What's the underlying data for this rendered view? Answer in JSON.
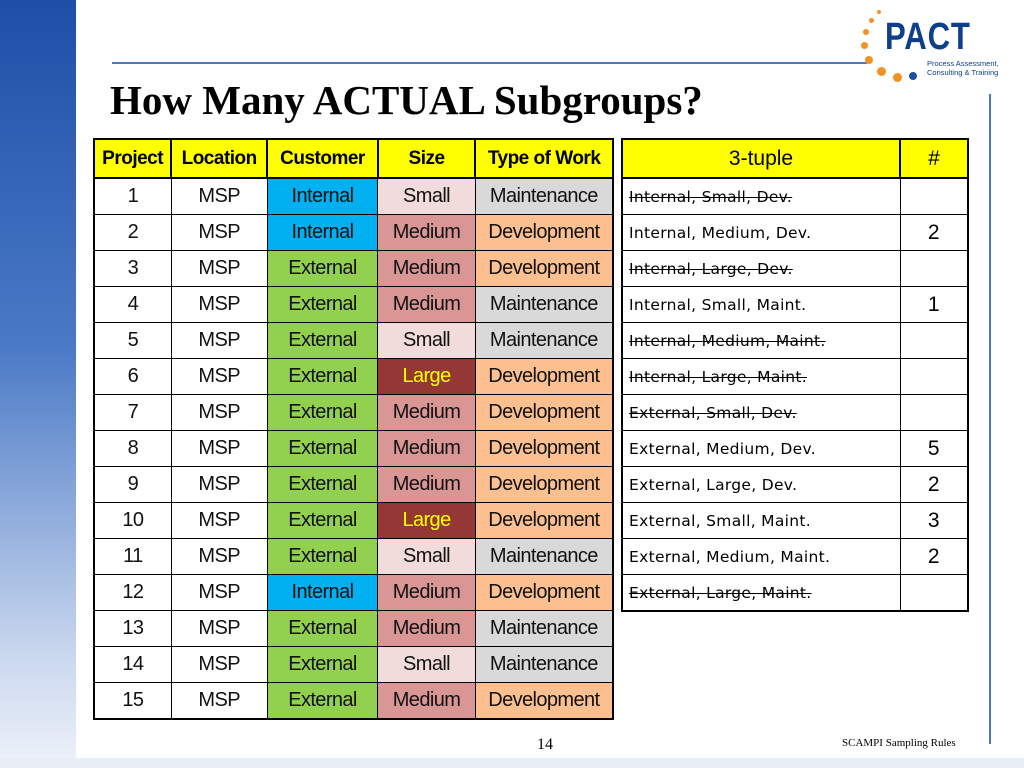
{
  "title": "How Many ACTUAL Subgroups?",
  "logo": {
    "word": "PACT",
    "tagline": [
      "Process Assessment,",
      "Consulting & Training"
    ]
  },
  "colors": {
    "header_yellow": "#ffff00",
    "internal": "#00b0f0",
    "external": "#92d050",
    "small": "#f2dcdb",
    "medium": "#da9694",
    "large": "#953735",
    "maintenance": "#d9d9d9",
    "development": "#fcc090",
    "accent_blue": "#4b77c2"
  },
  "projects_table": {
    "headers": [
      "Project",
      "Location",
      "Customer",
      "Size",
      "Type of Work"
    ],
    "rows": [
      {
        "project": "1",
        "location": "MSP",
        "customer": "Internal",
        "size": "Small",
        "work": "Maintenance"
      },
      {
        "project": "2",
        "location": "MSP",
        "customer": "Internal",
        "size": "Medium",
        "work": "Development"
      },
      {
        "project": "3",
        "location": "MSP",
        "customer": "External",
        "size": "Medium",
        "work": "Development"
      },
      {
        "project": "4",
        "location": "MSP",
        "customer": "External",
        "size": "Medium",
        "work": "Maintenance"
      },
      {
        "project": "5",
        "location": "MSP",
        "customer": "External",
        "size": "Small",
        "work": "Maintenance"
      },
      {
        "project": "6",
        "location": "MSP",
        "customer": "External",
        "size": "Large",
        "work": "Development"
      },
      {
        "project": "7",
        "location": "MSP",
        "customer": "External",
        "size": "Medium",
        "work": "Development"
      },
      {
        "project": "8",
        "location": "MSP",
        "customer": "External",
        "size": "Medium",
        "work": "Development"
      },
      {
        "project": "9",
        "location": "MSP",
        "customer": "External",
        "size": "Medium",
        "work": "Development"
      },
      {
        "project": "10",
        "location": "MSP",
        "customer": "External",
        "size": "Large",
        "work": "Development"
      },
      {
        "project": "11",
        "location": "MSP",
        "customer": "External",
        "size": "Small",
        "work": "Maintenance"
      },
      {
        "project": "12",
        "location": "MSP",
        "customer": "Internal",
        "size": "Medium",
        "work": "Development"
      },
      {
        "project": "13",
        "location": "MSP",
        "customer": "External",
        "size": "Medium",
        "work": "Maintenance"
      },
      {
        "project": "14",
        "location": "MSP",
        "customer": "External",
        "size": "Small",
        "work": "Maintenance"
      },
      {
        "project": "15",
        "location": "MSP",
        "customer": "External",
        "size": "Medium",
        "work": "Development"
      }
    ]
  },
  "tuple_table": {
    "headers": [
      "3-tuple",
      "#"
    ],
    "rows": [
      {
        "tuple": "Internal, Small, Dev.",
        "count": "",
        "struck": true
      },
      {
        "tuple": "Internal, Medium, Dev.",
        "count": "2",
        "struck": false
      },
      {
        "tuple": "Internal, Large, Dev.",
        "count": "",
        "struck": true
      },
      {
        "tuple": "Internal, Small, Maint.",
        "count": "1",
        "struck": false
      },
      {
        "tuple": "Internal, Medium, Maint.",
        "count": "",
        "struck": true
      },
      {
        "tuple": "Internal, Large, Maint.",
        "count": "",
        "struck": true
      },
      {
        "tuple": "External, Small, Dev.",
        "count": "",
        "struck": true
      },
      {
        "tuple": "External, Medium, Dev.",
        "count": "5",
        "struck": false
      },
      {
        "tuple": "External, Large, Dev.",
        "count": "2",
        "struck": false
      },
      {
        "tuple": "External, Small, Maint.",
        "count": "3",
        "struck": false
      },
      {
        "tuple": "External, Medium, Maint.",
        "count": "2",
        "struck": false
      },
      {
        "tuple": "External, Large, Maint.",
        "count": "",
        "struck": true
      }
    ]
  },
  "footer": {
    "page_number": "14",
    "text": "SCAMPI Sampling Rules"
  }
}
